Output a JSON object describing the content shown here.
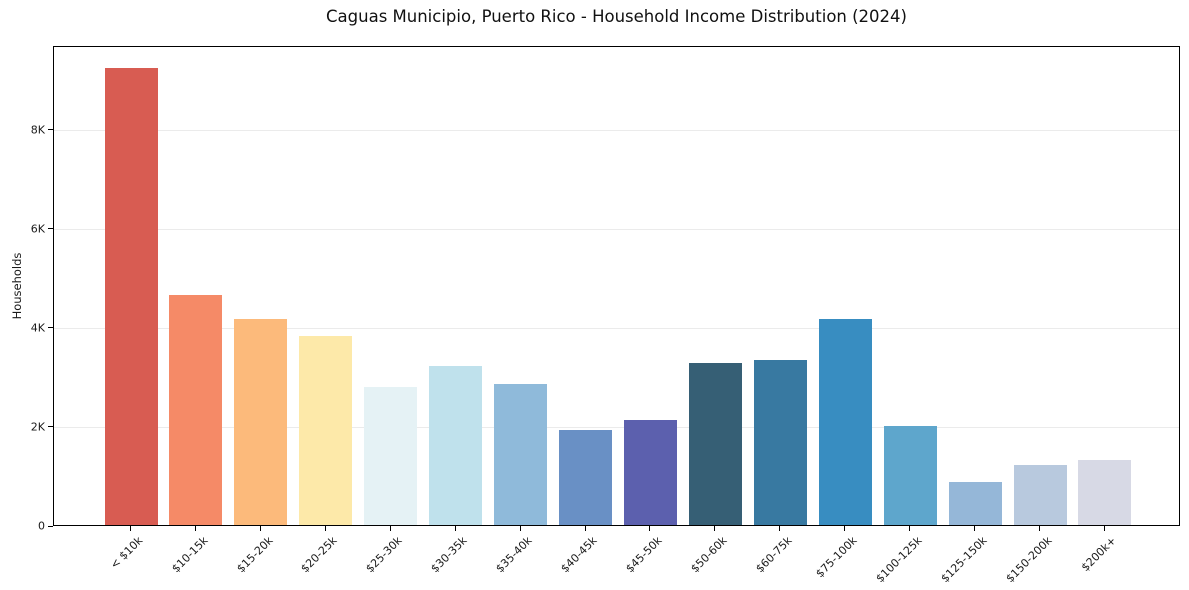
{
  "chart_data": {
    "type": "bar",
    "title": "Caguas Municipio, Puerto Rico - Household Income Distribution (2024)",
    "xlabel": "",
    "ylabel": "Households",
    "categories": [
      "< $10k",
      "$10-15k",
      "$15-20k",
      "$20-25k",
      "$25-30k",
      "$30-35k",
      "$35-40k",
      "$40-45k",
      "$45-50k",
      "$50-60k",
      "$60-75k",
      "$75-100k",
      "$100-125k",
      "$125-150k",
      "$150-200k",
      "$200k+"
    ],
    "values": [
      9230,
      4650,
      4160,
      3820,
      2780,
      3220,
      2840,
      1920,
      2110,
      3270,
      3330,
      4160,
      1990,
      860,
      1210,
      1310
    ],
    "bar_colors": [
      "#d85c52",
      "#f58a67",
      "#fcba7b",
      "#fde9a9",
      "#e5f2f5",
      "#bfe1ec",
      "#8fbada",
      "#6990c5",
      "#5c60ae",
      "#365f75",
      "#3879a1",
      "#388dc1",
      "#5ea6cc",
      "#95b7d8",
      "#b8c9de",
      "#d7d9e5"
    ],
    "ylim": [
      0,
      9690
    ],
    "yticks": [
      {
        "value": 0,
        "label": "0"
      },
      {
        "value": 2000,
        "label": "2K"
      },
      {
        "value": 4000,
        "label": "4K"
      },
      {
        "value": 6000,
        "label": "6K"
      },
      {
        "value": 8000,
        "label": "8K"
      }
    ],
    "grid": "horizontal",
    "legend": "none"
  }
}
